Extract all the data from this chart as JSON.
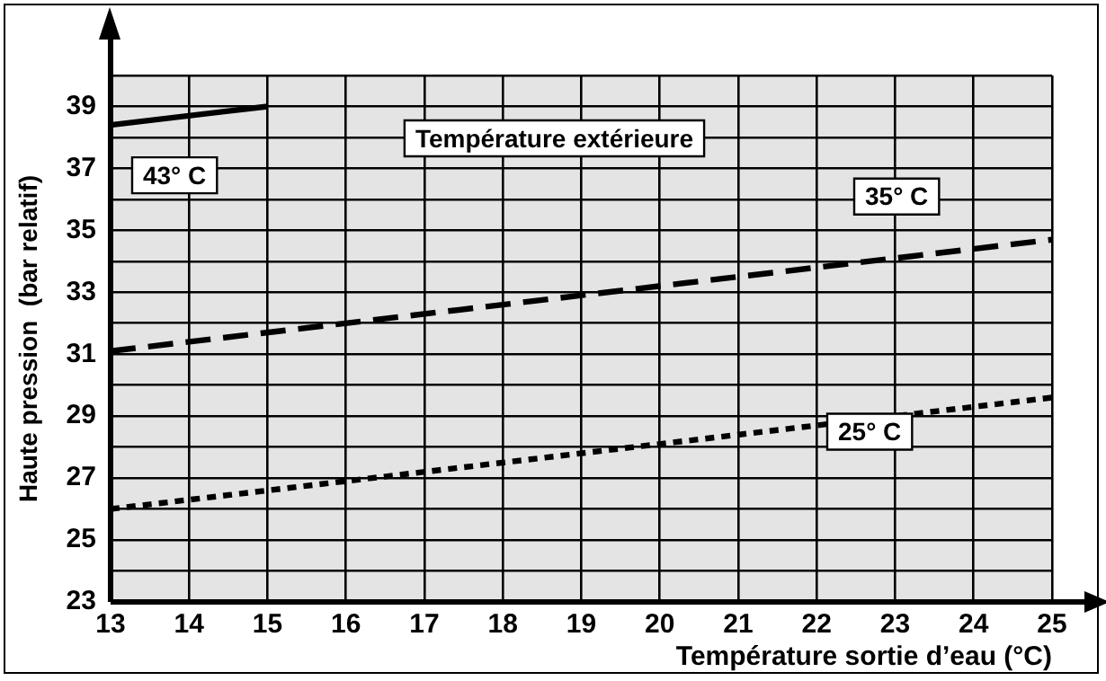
{
  "chart_data": {
    "type": "line",
    "xlabel": "Température sortie d’eau (°C)",
    "ylabel": "Haute pression  (bar relatif)",
    "annotations": [
      "Température extérieure"
    ],
    "series": [
      {
        "name": "43° C",
        "color": "#000000",
        "line_style": "solid",
        "x": [
          13,
          15
        ],
        "values": [
          38.4,
          39
        ]
      },
      {
        "name": "35° C",
        "color": "#000000",
        "line_style": "dashed",
        "x": [
          13,
          25
        ],
        "values": [
          31.1,
          34.7
        ]
      },
      {
        "name": "25° C",
        "color": "#000000",
        "line_style": "dotted",
        "x": [
          13,
          25
        ],
        "values": [
          26,
          29.6
        ]
      }
    ],
    "xlim": [
      13,
      25
    ],
    "xticks": [
      13,
      14,
      15,
      16,
      17,
      18,
      19,
      20,
      21,
      22,
      23,
      24,
      25
    ],
    "ylim": [
      23,
      40
    ],
    "yticks": [
      23,
      {
        "value": 24,
        "label": null
      },
      25,
      {
        "value": 26,
        "label": null
      },
      27,
      {
        "value": 28,
        "label": null
      },
      29,
      {
        "value": 30,
        "label": null
      },
      31,
      {
        "value": 32,
        "label": null
      },
      33,
      {
        "value": 34,
        "label": null
      },
      35,
      {
        "value": 36,
        "label": null
      },
      37,
      {
        "value": 38,
        "label": null
      },
      39,
      {
        "value": 40,
        "label": null
      }
    ],
    "grid": true,
    "legend": false,
    "marker": "none"
  }
}
